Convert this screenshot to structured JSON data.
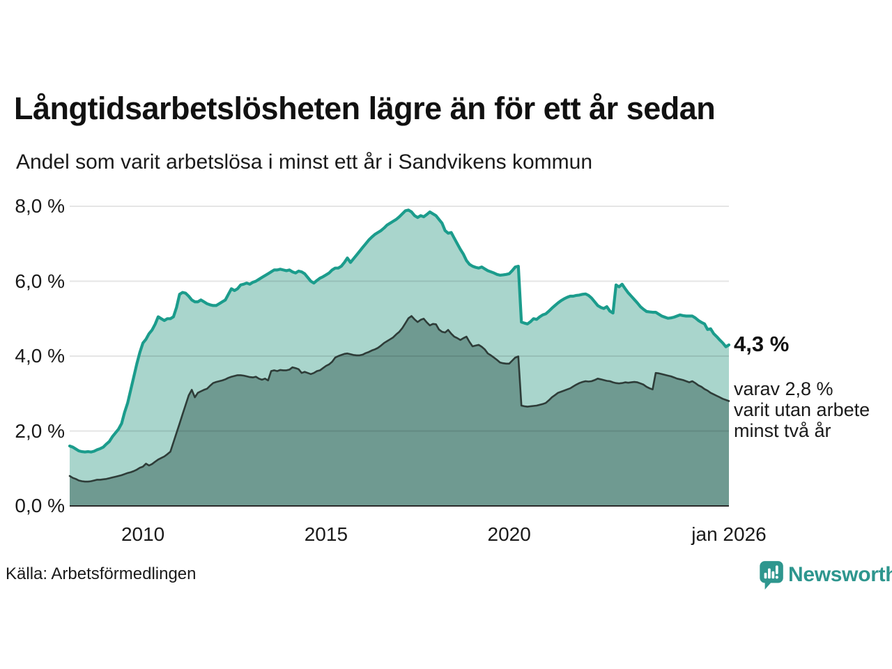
{
  "header": {
    "title": "Långtidsarbetslösheten lägre än för ett år sedan",
    "subtitle": "Andel som varit arbetslösa i minst ett år i Sandvikens kommun"
  },
  "annotations": {
    "end_label": "4,3 %",
    "note": "varav 2,8 %\nvarit utan arbete\nminst två år"
  },
  "footer": {
    "source": "Källa: Arbetsförmedlingen",
    "brand": "Newsworthy"
  },
  "colors": {
    "line_total": "#1b9c8c",
    "fill_total": "#a9d5cc",
    "line_two_years": "#2e3c38",
    "fill_two_years": "#6f9a91",
    "gridline": "rgba(0,0,0,0.10)",
    "axis": "#2b2b2b",
    "brand_teal": "#2e968e"
  },
  "chart_data": {
    "type": "area",
    "title": "Långtidsarbetslösheten lägre än för ett år sedan",
    "subtitle": "Andel som varit arbetslösa i minst ett år i Sandvikens kommun",
    "unit": "%",
    "interval": "monthly",
    "start_year": 2008,
    "x_start": "2008-01",
    "x_end": "2026-01",
    "ylim": [
      0,
      8
    ],
    "grid": true,
    "legend": "none",
    "y_ticks": [
      {
        "label": "0,0 %",
        "value": 0
      },
      {
        "label": "2,0 %",
        "value": 2
      },
      {
        "label": "4,0 %",
        "value": 4
      },
      {
        "label": "6,0 %",
        "value": 6
      },
      {
        "label": "8,0 %",
        "value": 8
      }
    ],
    "x_ticks": [
      {
        "label": "2010",
        "year": 2010
      },
      {
        "label": "2015",
        "year": 2015
      },
      {
        "label": "2020",
        "year": 2020
      },
      {
        "label": "jan 2026",
        "year": 2026
      }
    ],
    "series": [
      {
        "name": "Arbetslösa minst ett år",
        "color": "#1b9c8c",
        "fill": "#a9d5cc",
        "end_value": 4.3,
        "values": [
          1.6,
          1.57,
          1.52,
          1.47,
          1.45,
          1.44,
          1.45,
          1.44,
          1.46,
          1.5,
          1.53,
          1.57,
          1.65,
          1.72,
          1.85,
          1.95,
          2.05,
          2.2,
          2.5,
          2.75,
          3.1,
          3.45,
          3.8,
          4.1,
          4.35,
          4.45,
          4.6,
          4.7,
          4.85,
          5.05,
          5.0,
          4.95,
          5.0,
          5.0,
          5.05,
          5.3,
          5.65,
          5.7,
          5.68,
          5.6,
          5.5,
          5.45,
          5.45,
          5.5,
          5.45,
          5.4,
          5.37,
          5.35,
          5.35,
          5.4,
          5.45,
          5.5,
          5.65,
          5.8,
          5.75,
          5.8,
          5.9,
          5.92,
          5.95,
          5.92,
          5.97,
          6.0,
          6.05,
          6.1,
          6.15,
          6.2,
          6.25,
          6.3,
          6.3,
          6.32,
          6.3,
          6.28,
          6.3,
          6.25,
          6.22,
          6.27,
          6.25,
          6.2,
          6.1,
          6.0,
          5.95,
          6.02,
          6.08,
          6.12,
          6.17,
          6.22,
          6.3,
          6.35,
          6.35,
          6.4,
          6.5,
          6.62,
          6.5,
          6.6,
          6.7,
          6.8,
          6.9,
          7.0,
          7.1,
          7.18,
          7.25,
          7.3,
          7.35,
          7.42,
          7.5,
          7.55,
          7.6,
          7.65,
          7.72,
          7.8,
          7.88,
          7.9,
          7.85,
          7.75,
          7.7,
          7.75,
          7.72,
          7.78,
          7.85,
          7.8,
          7.75,
          7.65,
          7.55,
          7.35,
          7.28,
          7.3,
          7.15,
          7.0,
          6.85,
          6.72,
          6.55,
          6.45,
          6.4,
          6.37,
          6.35,
          6.38,
          6.33,
          6.28,
          6.25,
          6.22,
          6.18,
          6.16,
          6.17,
          6.18,
          6.2,
          6.28,
          6.38,
          6.4,
          4.91,
          4.88,
          4.86,
          4.92,
          5.0,
          4.98,
          5.05,
          5.1,
          5.13,
          5.2,
          5.28,
          5.35,
          5.42,
          5.48,
          5.53,
          5.57,
          5.6,
          5.6,
          5.62,
          5.63,
          5.65,
          5.66,
          5.62,
          5.55,
          5.45,
          5.35,
          5.3,
          5.27,
          5.32,
          5.2,
          5.15,
          5.9,
          5.85,
          5.92,
          5.8,
          5.69,
          5.6,
          5.51,
          5.42,
          5.32,
          5.25,
          5.19,
          5.18,
          5.17,
          5.17,
          5.12,
          5.07,
          5.04,
          5.01,
          5.02,
          5.04,
          5.07,
          5.1,
          5.08,
          5.07,
          5.07,
          5.07,
          5.02,
          4.95,
          4.9,
          4.86,
          4.71,
          4.73,
          4.6,
          4.52,
          4.43,
          4.35,
          4.25,
          4.3
        ]
      },
      {
        "name": "varav arbetslösa minst två år",
        "color": "#2e3c38",
        "fill": "#6f9a91",
        "end_value": 2.8,
        "values": [
          0.8,
          0.75,
          0.72,
          0.68,
          0.66,
          0.65,
          0.65,
          0.66,
          0.68,
          0.7,
          0.7,
          0.71,
          0.72,
          0.74,
          0.76,
          0.78,
          0.8,
          0.82,
          0.85,
          0.88,
          0.9,
          0.93,
          0.97,
          1.02,
          1.05,
          1.13,
          1.08,
          1.12,
          1.18,
          1.24,
          1.28,
          1.32,
          1.38,
          1.45,
          1.7,
          1.95,
          2.2,
          2.45,
          2.7,
          2.95,
          3.1,
          2.9,
          3.02,
          3.06,
          3.1,
          3.13,
          3.21,
          3.28,
          3.31,
          3.33,
          3.35,
          3.38,
          3.42,
          3.45,
          3.47,
          3.49,
          3.49,
          3.48,
          3.46,
          3.44,
          3.43,
          3.45,
          3.4,
          3.37,
          3.4,
          3.35,
          3.6,
          3.62,
          3.6,
          3.63,
          3.62,
          3.62,
          3.64,
          3.7,
          3.68,
          3.65,
          3.55,
          3.58,
          3.55,
          3.52,
          3.55,
          3.6,
          3.62,
          3.68,
          3.74,
          3.78,
          3.85,
          3.96,
          4.0,
          4.03,
          4.06,
          4.07,
          4.05,
          4.03,
          4.02,
          4.02,
          4.04,
          4.08,
          4.11,
          4.15,
          4.18,
          4.22,
          4.28,
          4.35,
          4.4,
          4.45,
          4.5,
          4.58,
          4.65,
          4.75,
          4.88,
          5.01,
          5.07,
          4.98,
          4.91,
          4.97,
          5.0,
          4.9,
          4.82,
          4.86,
          4.85,
          4.71,
          4.65,
          4.63,
          4.7,
          4.6,
          4.52,
          4.48,
          4.43,
          4.48,
          4.52,
          4.38,
          4.26,
          4.28,
          4.3,
          4.25,
          4.18,
          4.07,
          4.02,
          3.96,
          3.9,
          3.83,
          3.81,
          3.8,
          3.8,
          3.88,
          3.96,
          3.99,
          2.68,
          2.66,
          2.65,
          2.66,
          2.67,
          2.68,
          2.7,
          2.72,
          2.75,
          2.82,
          2.9,
          2.96,
          3.02,
          3.05,
          3.08,
          3.11,
          3.14,
          3.19,
          3.24,
          3.28,
          3.31,
          3.33,
          3.32,
          3.33,
          3.36,
          3.4,
          3.38,
          3.36,
          3.34,
          3.33,
          3.3,
          3.28,
          3.27,
          3.28,
          3.3,
          3.29,
          3.3,
          3.31,
          3.3,
          3.27,
          3.24,
          3.18,
          3.14,
          3.11,
          3.55,
          3.54,
          3.52,
          3.5,
          3.48,
          3.46,
          3.43,
          3.4,
          3.38,
          3.36,
          3.33,
          3.3,
          3.33,
          3.28,
          3.22,
          3.18,
          3.12,
          3.08,
          3.02,
          2.98,
          2.94,
          2.9,
          2.86,
          2.83,
          2.8
        ]
      }
    ]
  }
}
